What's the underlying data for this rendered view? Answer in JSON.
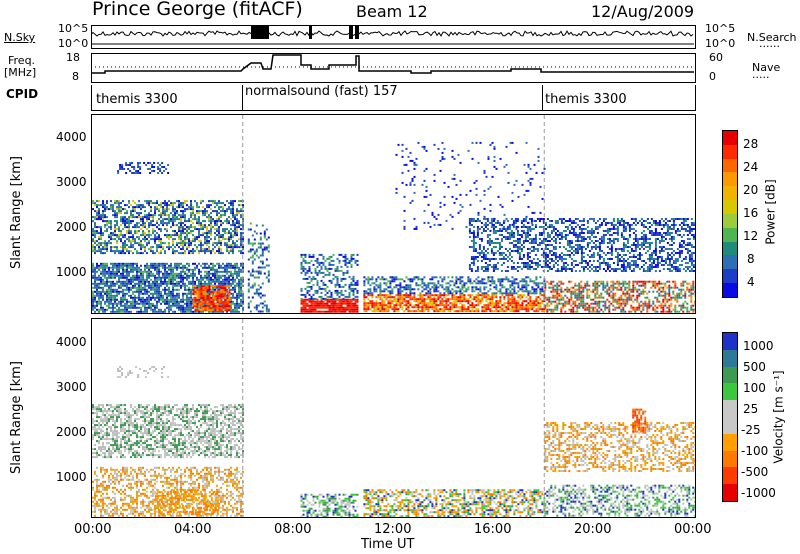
{
  "header": {
    "title": "Prince George (fitACF)",
    "beam": "Beam 12",
    "date": "12/Aug/2009"
  },
  "nsky_panel": {
    "left_label": "N.Sky",
    "right_label": "N.Search",
    "ticks": [
      "10^5",
      "10^0"
    ]
  },
  "freq_panel": {
    "left_label_1": "Freq.",
    "left_label_2": "[MHz]",
    "left_ticks": [
      "18",
      "8"
    ],
    "right_label": "Nave",
    "right_ticks": [
      "60",
      "0"
    ]
  },
  "cpid_panel": {
    "label": "CPID",
    "modes": [
      {
        "name": "themis 3300",
        "start_hour": 0
      },
      {
        "name": "normalsound (fast) 157",
        "start_hour": 6
      },
      {
        "name": "themis 3300",
        "start_hour": 18
      }
    ]
  },
  "power_panel": {
    "ylabel": "Slant Range [km]",
    "cbar_label": "Power [dB]",
    "cbar_ticks": [
      "28",
      "24",
      "20",
      "16",
      "12",
      "8",
      "4"
    ],
    "cbar_colors": [
      "#e60000",
      "#ff2a00",
      "#ff6600",
      "#ff9900",
      "#f0b400",
      "#d7c800",
      "#9ccc3c",
      "#50b450",
      "#1e8c78",
      "#2d6eb4",
      "#1e3cc8",
      "#0a0ae6"
    ],
    "yticks": [
      "4000",
      "3000",
      "2000",
      "1000"
    ]
  },
  "velocity_panel": {
    "ylabel": "Slant Range [km]",
    "cbar_label": "Velocity [m s⁻¹]",
    "cbar_ticks": [
      "1000",
      "500",
      "100",
      "25",
      "-25",
      "-100",
      "-500",
      "-1000"
    ],
    "cbar_colors": [
      "#1e32c8",
      "#2d7a96",
      "#3c9b50",
      "#3cc83c",
      "#c8c8c8",
      "#c8c8c8",
      "#ffa000",
      "#ff7800",
      "#ff3c00",
      "#e60000"
    ],
    "yticks": [
      "4000",
      "3000",
      "2000",
      "1000"
    ]
  },
  "xaxis": {
    "label": "Time UT",
    "ticks": [
      "00:00",
      "04:00",
      "08:00",
      "12:00",
      "16:00",
      "20:00",
      "00:00"
    ]
  },
  "chart_data": [
    {
      "type": "heatmap",
      "title": "Prince George (fitACF) Beam 12 12/Aug/2009",
      "xlabel": "Time UT",
      "ylabel": "Slant Range [km]",
      "xlim_hours": [
        0,
        24
      ],
      "ylim_km": [
        180,
        4600
      ],
      "colorbar": {
        "label": "Power [dB]",
        "range": [
          0,
          30
        ]
      },
      "data_gaps_hours": [
        [
          7.0,
          8.3
        ],
        [
          10.6,
          10.8
        ]
      ],
      "mode_changes_hours": [
        6,
        18
      ],
      "regions": [
        {
          "t": [
            0.0,
            6.0
          ],
          "range_km": [
            200,
            1400
          ],
          "level": "low-med"
        },
        {
          "t": [
            0.0,
            6.0
          ],
          "range_km": [
            1500,
            2700
          ],
          "level": "med"
        },
        {
          "t": [
            4.0,
            5.5
          ],
          "range_km": [
            250,
            850
          ],
          "level": "high"
        },
        {
          "t": [
            8.3,
            10.6
          ],
          "range_km": [
            200,
            600
          ],
          "level": "very high"
        },
        {
          "t": [
            10.8,
            18.0
          ],
          "range_km": [
            200,
            900
          ],
          "level": "high"
        },
        {
          "t": [
            15.0,
            24.0
          ],
          "range_km": [
            1100,
            2300
          ],
          "level": "low"
        }
      ]
    },
    {
      "type": "heatmap",
      "xlabel": "Time UT",
      "ylabel": "Slant Range [km]",
      "xlim_hours": [
        0,
        24
      ],
      "ylim_km": [
        180,
        4600
      ],
      "colorbar": {
        "label": "Velocity [m s⁻¹]",
        "range": [
          -1000,
          1000
        ]
      },
      "data_gaps_hours": [
        [
          7.0,
          8.3
        ],
        [
          10.6,
          10.8
        ]
      ],
      "regions": [
        {
          "t": [
            0.0,
            6.0
          ],
          "range_km": [
            1500,
            2700
          ],
          "level": "near zero"
        },
        {
          "t": [
            2.0,
            5.0
          ],
          "range_km": [
            250,
            900
          ],
          "level": "negative"
        },
        {
          "t": [
            8.3,
            18.0
          ],
          "range_km": [
            200,
            800
          ],
          "level": "negative/positive mix"
        },
        {
          "t": [
            18.0,
            24.0
          ],
          "range_km": [
            1200,
            2300
          ],
          "level": "near zero"
        }
      ]
    }
  ]
}
